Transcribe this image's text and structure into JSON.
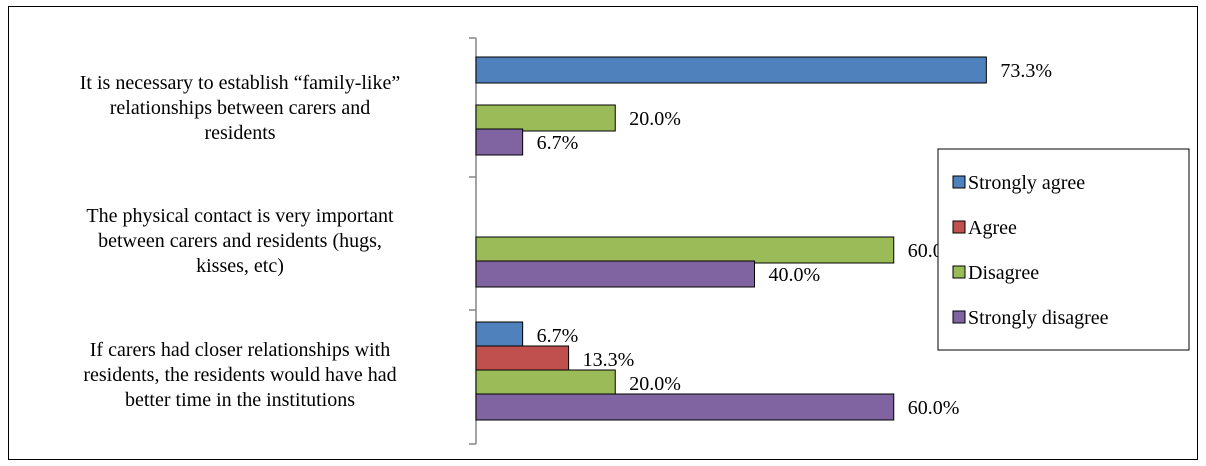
{
  "chart_data": {
    "type": "bar",
    "orientation": "horizontal",
    "categories": [
      "It is necessary to establish “family-like” relationships between carers and residents",
      "The physical contact is very important between carers and residents (hugs, kisses, etc)",
      "If carers had closer relationships with residents, the residents would have had better time in the institutions"
    ],
    "category_lines": [
      [
        "It is necessary to establish “family-like”",
        "relationships between carers and",
        "residents"
      ],
      [
        "The physical contact is very important",
        "between carers and residents (hugs,",
        "kisses, etc)"
      ],
      [
        "If carers had closer relationships with",
        "residents, the residents would have had",
        "better time in the institutions"
      ]
    ],
    "series": [
      {
        "name": "Strongly agree",
        "color": "#4F81BD",
        "values": [
          73.3,
          null,
          6.7
        ],
        "labels": [
          "73.3%",
          "",
          "6.7%"
        ]
      },
      {
        "name": "Agree",
        "color": "#C0504D",
        "values": [
          null,
          null,
          13.3
        ],
        "labels": [
          "",
          "",
          "13.3%"
        ]
      },
      {
        "name": "Disagree",
        "color": "#9BBB59",
        "values": [
          20.0,
          60.0,
          20.0
        ],
        "labels": [
          "20.0%",
          "60.0%",
          "20.0%"
        ]
      },
      {
        "name": "Strongly disagree",
        "color": "#8064A2",
        "values": [
          6.7,
          40.0,
          60.0
        ],
        "labels": [
          "6.7%",
          "40.0%",
          "60.0%"
        ]
      }
    ],
    "xlim": [
      0,
      80
    ],
    "grid": false,
    "legend_position": "right"
  }
}
